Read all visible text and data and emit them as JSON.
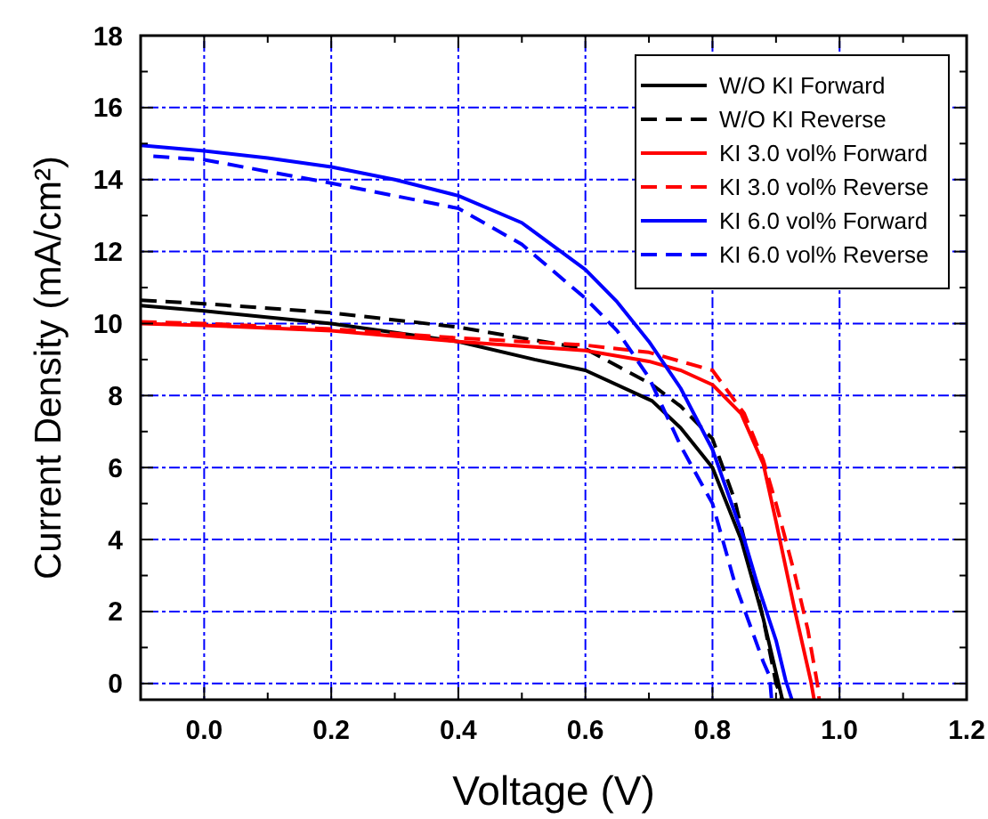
{
  "chart_data": {
    "type": "line",
    "xlabel": "Voltage (V)",
    "ylabel": "Current Density  (mA/cm²)",
    "xlim": [
      -0.1,
      1.2
    ],
    "ylim": [
      -0.45,
      18
    ],
    "xticks": [
      {
        "value": 0,
        "label": "0.0"
      },
      {
        "value": 0.1,
        "label": null
      },
      {
        "value": 0.2,
        "label": "0.2"
      },
      {
        "value": 0.3,
        "label": null
      },
      {
        "value": 0.4,
        "label": "0.4"
      },
      {
        "value": 0.5,
        "label": null
      },
      {
        "value": 0.6,
        "label": "0.6"
      },
      {
        "value": 0.7,
        "label": null
      },
      {
        "value": 0.8,
        "label": "0.8"
      },
      {
        "value": 0.9,
        "label": null
      },
      {
        "value": 1.0,
        "label": "1.0"
      },
      {
        "value": 1.1,
        "label": null
      },
      {
        "value": 1.2,
        "label": "1.2"
      }
    ],
    "yticks": [
      0,
      {
        "value": 1,
        "label": null
      },
      2,
      {
        "value": 3,
        "label": null
      },
      4,
      {
        "value": 5,
        "label": null
      },
      6,
      {
        "value": 7,
        "label": null
      },
      8,
      {
        "value": 9,
        "label": null
      },
      10,
      {
        "value": 11,
        "label": null
      },
      12,
      {
        "value": 13,
        "label": null
      },
      14,
      {
        "value": 15,
        "label": null
      },
      16,
      {
        "value": 17,
        "label": null
      },
      18
    ],
    "grid": true,
    "legend": "top right",
    "series": [
      {
        "name": "W/O KI Forward",
        "color": "#000000",
        "line_style": "solid",
        "x": [
          -0.1,
          0,
          0.2,
          0.4,
          0.52,
          0.6,
          0.705,
          0.75,
          0.8,
          0.845,
          0.88,
          0.904,
          0.91
        ],
        "values": [
          10.5,
          10.35,
          10.0,
          9.5,
          9.0,
          8.7,
          7.85,
          7.1,
          6.0,
          4.0,
          1.8,
          0,
          -0.45
        ]
      },
      {
        "name": "W/O KI Reverse",
        "color": "#000000",
        "line_style": "dashed",
        "x": [
          -0.1,
          0,
          0.2,
          0.4,
          0.6,
          0.705,
          0.75,
          0.8,
          0.835,
          0.88,
          0.9,
          0.91
        ],
        "values": [
          10.65,
          10.55,
          10.3,
          9.9,
          9.3,
          8.3,
          7.7,
          6.8,
          5.1,
          1.8,
          0,
          -0.45
        ]
      },
      {
        "name": "KI 3.0 vol% Forward",
        "color": "#ff0000",
        "line_style": "solid",
        "x": [
          -0.1,
          0,
          0.2,
          0.4,
          0.6,
          0.7,
          0.75,
          0.8,
          0.845,
          0.88,
          0.9,
          0.93,
          0.955,
          0.96
        ],
        "values": [
          10.0,
          9.95,
          9.8,
          9.5,
          9.25,
          8.95,
          8.7,
          8.3,
          7.5,
          6.1,
          4.5,
          2.0,
          0.05,
          -0.45
        ]
      },
      {
        "name": "KI 3.0 vol% Reverse",
        "color": "#ff0000",
        "line_style": "dashed",
        "x": [
          -0.1,
          0,
          0.2,
          0.4,
          0.6,
          0.7,
          0.8,
          0.85,
          0.88,
          0.9,
          0.93,
          0.95,
          0.965,
          0.968
        ],
        "values": [
          10.05,
          10.0,
          9.85,
          9.6,
          9.4,
          9.2,
          8.7,
          7.5,
          6.2,
          5.0,
          3.0,
          1.5,
          0,
          -0.45
        ]
      },
      {
        "name": "KI 6.0 vol% Forward",
        "color": "#0000ff",
        "line_style": "solid",
        "x": [
          -0.1,
          0,
          0.1,
          0.2,
          0.3,
          0.4,
          0.5,
          0.6,
          0.65,
          0.7,
          0.75,
          0.8,
          0.85,
          0.87,
          0.9,
          0.915,
          0.925
        ],
        "values": [
          14.95,
          14.8,
          14.6,
          14.35,
          14.0,
          13.55,
          12.8,
          11.5,
          10.6,
          9.5,
          8.2,
          6.5,
          4.0,
          2.8,
          1.2,
          0.1,
          -0.45
        ]
      },
      {
        "name": "KI 6.0 vol% Reverse",
        "color": "#0000ff",
        "line_style": "dashed",
        "x": [
          -0.08,
          0,
          0.2,
          0.4,
          0.5,
          0.6,
          0.65,
          0.7,
          0.75,
          0.8,
          0.835,
          0.88,
          0.89,
          0.893
        ],
        "values": [
          14.65,
          14.55,
          13.9,
          13.2,
          12.2,
          10.7,
          9.8,
          8.5,
          6.6,
          5.0,
          2.8,
          0.6,
          0.2,
          -0.45
        ]
      }
    ]
  }
}
